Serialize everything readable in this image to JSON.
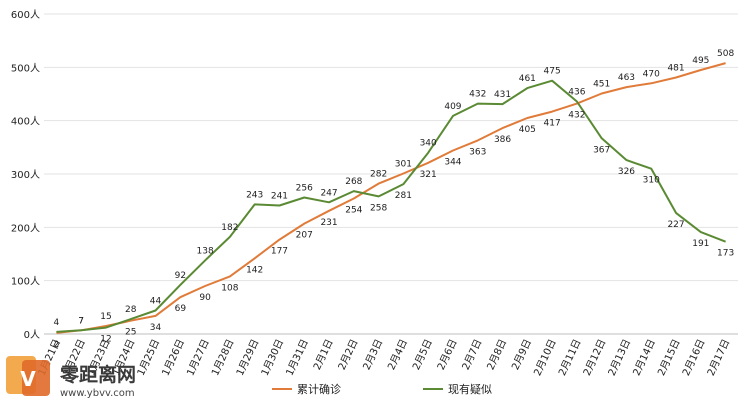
{
  "chart_data": {
    "type": "line",
    "categories": [
      "1月21日",
      "1月22日",
      "1月23日",
      "1月24日",
      "1月25日",
      "1月26日",
      "1月27日",
      "1月28日",
      "1月29日",
      "1月30日",
      "1月31日",
      "2月1日",
      "2月2日",
      "2月3日",
      "2月4日",
      "2月5日",
      "2月6日",
      "2月7日",
      "2月8日",
      "2月9日",
      "2月10日",
      "2月11日",
      "2月12日",
      "2月13日",
      "2月14日",
      "2月15日",
      "2月16日",
      "2月17日"
    ],
    "y_tick_labels": [
      "0人",
      "100人",
      "200人",
      "300人",
      "400人",
      "500人",
      "600人"
    ],
    "ylim": [
      0,
      600
    ],
    "grid": true,
    "legend_position": "bottom",
    "series": [
      {
        "name": "累计确诊",
        "color": "#e07b39",
        "values": [
          2,
          7,
          15,
          25,
          34,
          69,
          90,
          108,
          142,
          177,
          207,
          231,
          254,
          282,
          301,
          321,
          344,
          363,
          386,
          405,
          417,
          432,
          451,
          463,
          470,
          481,
          495,
          508
        ]
      },
      {
        "name": "现有疑似",
        "color": "#5a8a33",
        "values": [
          4,
          7,
          12,
          28,
          44,
          92,
          138,
          182,
          243,
          241,
          256,
          247,
          268,
          258,
          281,
          340,
          409,
          432,
          431,
          461,
          475,
          436,
          367,
          326,
          310,
          227,
          191,
          173
        ]
      }
    ]
  },
  "watermark": {
    "brand": "零距离网",
    "url": "www.ybvv.com"
  }
}
